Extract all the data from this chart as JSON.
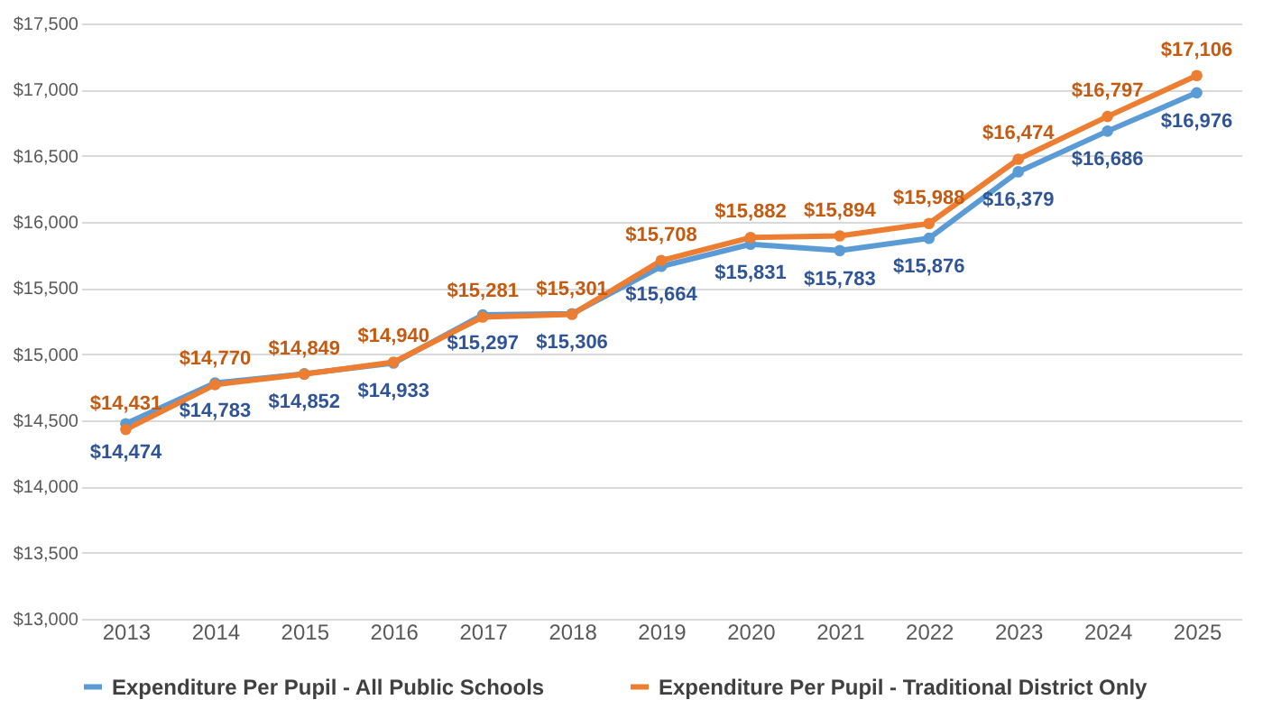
{
  "chart_data": {
    "type": "line",
    "categories": [
      "2013",
      "2014",
      "2015",
      "2016",
      "2017",
      "2018",
      "2019",
      "2020",
      "2021",
      "2022",
      "2023",
      "2024",
      "2025"
    ],
    "series": [
      {
        "name": "Expenditure Per Pupil - All Public Schools",
        "color": "#5b9bd5",
        "values": [
          14474,
          14783,
          14852,
          14933,
          15297,
          15306,
          15664,
          15831,
          15783,
          15876,
          16379,
          16686,
          16976
        ],
        "value_labels": [
          "$14,474",
          "$14,783",
          "$14,852",
          "$14,933",
          "$15,297",
          "$15,306",
          "$15,664",
          "$15,831",
          "$15,783",
          "$15,876",
          "$16,379",
          "$16,686",
          "$16,976"
        ]
      },
      {
        "name": "Expenditure Per Pupil - Traditional District Only",
        "color": "#ed7d31",
        "values": [
          14431,
          14770,
          14849,
          14940,
          15281,
          15301,
          15708,
          15882,
          15894,
          15988,
          16474,
          16797,
          17106
        ],
        "value_labels": [
          "$14,431",
          "$14,770",
          "$14,849",
          "$14,940",
          "$15,281",
          "$15,301",
          "$15,708",
          "$15,882",
          "$15,894",
          "$15,988",
          "$16,474",
          "$16,797",
          "$17,106"
        ]
      }
    ],
    "ylim": [
      13000,
      17500
    ],
    "yticks": [
      {
        "value": 13000,
        "label": "$13,000"
      },
      {
        "value": 13500,
        "label": "$13,500"
      },
      {
        "value": 14000,
        "label": "$14,000"
      },
      {
        "value": 14500,
        "label": "$14,500"
      },
      {
        "value": 15000,
        "label": "$15,000"
      },
      {
        "value": 15500,
        "label": "$15,500"
      },
      {
        "value": 16000,
        "label": "$16,000"
      },
      {
        "value": 16500,
        "label": "$16,500"
      },
      {
        "value": 17000,
        "label": "$17,000"
      },
      {
        "value": 17500,
        "label": "$17,500"
      }
    ],
    "grid": "y",
    "legend": "bottom",
    "marker": "circle",
    "line_style": "solid"
  }
}
